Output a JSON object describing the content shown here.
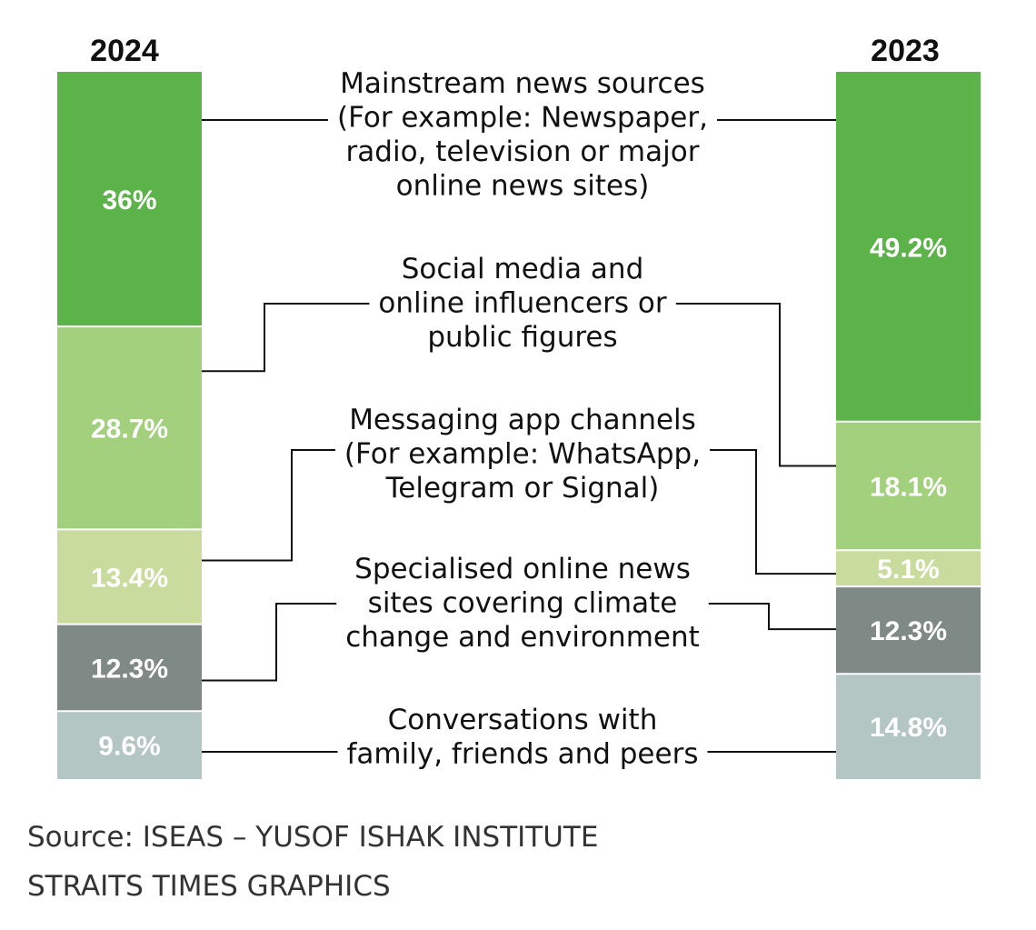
{
  "chart_data": {
    "type": "bar",
    "stacked": true,
    "categories": [
      "2024",
      "2023"
    ],
    "series": [
      {
        "name": "Mainstream news sources (For example: Newspaper, radio, television or major online news sites)",
        "lines": [
          "Mainstream news sources",
          "(For example: Newspaper,",
          "radio, television or major",
          "online news sites)"
        ],
        "color": "#5bb349",
        "values": [
          36,
          49.2
        ],
        "labels": [
          "36%",
          "49.2%"
        ]
      },
      {
        "name": "Social media and online influencers or public figures",
        "lines": [
          "Social media and",
          "online influencers or",
          "public figures"
        ],
        "color": "#a3d07c",
        "values": [
          28.7,
          18.1
        ],
        "labels": [
          "28.7%",
          "18.1%"
        ]
      },
      {
        "name": "Messaging app channels (For example: WhatsApp, Telegram or Signal)",
        "lines": [
          "Messaging app channels",
          "(For example: WhatsApp,",
          "Telegram or Signal)"
        ],
        "color": "#c9dc9e",
        "values": [
          13.4,
          5.1
        ],
        "labels": [
          "13.4%",
          "5.1%"
        ]
      },
      {
        "name": "Specialised online news sites covering climate change and environment",
        "lines": [
          "Specialised online news",
          "sites covering climate",
          "change and environment"
        ],
        "color": "#7f8a86",
        "values": [
          12.3,
          12.3
        ],
        "labels": [
          "12.3%",
          "12.3%"
        ]
      },
      {
        "name": "Conversations with family, friends and peers",
        "lines": [
          "Conversations with",
          "family, friends and peers"
        ],
        "color": "#b3c6c4",
        "values": [
          9.6,
          14.8
        ],
        "labels": [
          "9.6%",
          "14.8%"
        ]
      }
    ],
    "title": "",
    "xlabel": "",
    "ylabel": "",
    "ylim": [
      0,
      100
    ]
  },
  "footer": {
    "source": "Source: ISEAS – YUSOF ISHAK INSTITUTE",
    "credit": "STRAITS TIMES GRAPHICS"
  }
}
